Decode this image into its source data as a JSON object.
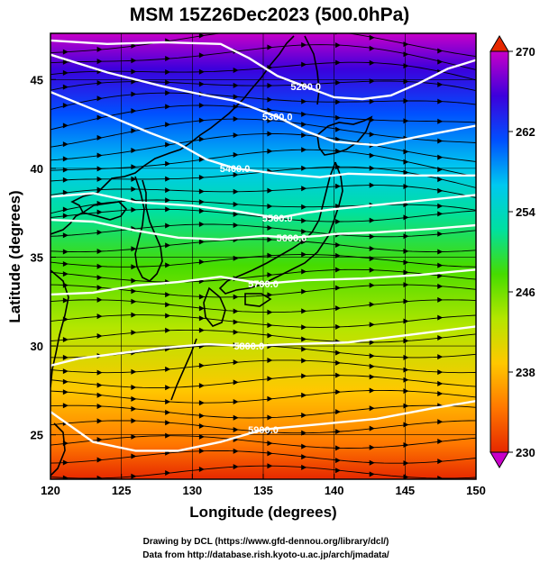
{
  "chart_data": {
    "type": "heatmap",
    "title": "MSM 15Z26Dec2023 (500.0hPa)",
    "xlabel": "Longitude (degrees)",
    "ylabel": "Latitude  (degrees)",
    "xlim": [
      120,
      150
    ],
    "ylim": [
      22.5,
      47.6
    ],
    "x_ticks": [
      120,
      125,
      130,
      135,
      140,
      145,
      150
    ],
    "y_ticks": [
      25,
      30,
      35,
      40,
      45
    ],
    "colorbar": {
      "min": 230,
      "max": 270,
      "ticks": [
        270,
        262,
        254,
        246,
        238,
        230
      ],
      "colors": [
        "#c800c8",
        "#3c00dc",
        "#0050ff",
        "#00c8f0",
        "#00e0a0",
        "#46dc00",
        "#b4e600",
        "#ffc800",
        "#ff7800",
        "#e62800"
      ]
    },
    "contours": [
      {
        "label": "5200.0",
        "points": [
          [
            120,
            47.2
          ],
          [
            124,
            47.0
          ],
          [
            128,
            47.1
          ],
          [
            132,
            47.0
          ],
          [
            134,
            46.2
          ],
          [
            136,
            45.2
          ],
          [
            138,
            44.6
          ],
          [
            140,
            44.0
          ],
          [
            142,
            43.9
          ],
          [
            144,
            44.1
          ],
          [
            146,
            44.8
          ],
          [
            148,
            45.6
          ],
          [
            150,
            46.1
          ]
        ]
      },
      {
        "label": "5300.0",
        "points": [
          [
            120,
            46.4
          ],
          [
            124,
            45.4
          ],
          [
            128,
            44.6
          ],
          [
            131,
            44.1
          ],
          [
            133,
            43.8
          ],
          [
            136,
            42.9
          ],
          [
            138,
            42.1
          ],
          [
            140,
            41.5
          ],
          [
            143,
            41.3
          ],
          [
            146,
            41.8
          ],
          [
            150,
            42.4
          ]
        ]
      },
      {
        "label": "5400.0",
        "points": [
          [
            120,
            44.3
          ],
          [
            124,
            43.0
          ],
          [
            127,
            42.0
          ],
          [
            129,
            41.4
          ],
          [
            131,
            40.5
          ],
          [
            133,
            40.0
          ],
          [
            136,
            39.7
          ],
          [
            139,
            39.5
          ],
          [
            141,
            39.7
          ],
          [
            145,
            39.6
          ],
          [
            150,
            39.6
          ]
        ]
      },
      {
        "label": "5500.0",
        "points": [
          [
            120,
            38.4
          ],
          [
            123,
            38.6
          ],
          [
            126,
            38.1
          ],
          [
            130,
            37.9
          ],
          [
            133,
            37.6
          ],
          [
            136,
            37.2
          ],
          [
            138,
            37.5
          ],
          [
            140,
            37.7
          ],
          [
            145,
            38.1
          ],
          [
            150,
            38.5
          ]
        ]
      },
      {
        "label": "5600.0",
        "points": [
          [
            120,
            37.1
          ],
          [
            123,
            37.0
          ],
          [
            126,
            36.5
          ],
          [
            129,
            36.1
          ],
          [
            132,
            36.0
          ],
          [
            135,
            36.2
          ],
          [
            137,
            36.1
          ],
          [
            139,
            36.2
          ],
          [
            140,
            36.3
          ],
          [
            143,
            36.4
          ],
          [
            147,
            36.6
          ],
          [
            150,
            36.8
          ]
        ]
      },
      {
        "label": "5700.0",
        "points": [
          [
            120,
            32.9
          ],
          [
            123,
            33.0
          ],
          [
            126,
            33.4
          ],
          [
            129,
            33.6
          ],
          [
            132,
            33.9
          ],
          [
            135,
            33.5
          ],
          [
            138,
            33.7
          ],
          [
            142,
            33.8
          ],
          [
            146,
            34.0
          ],
          [
            150,
            34.3
          ]
        ]
      },
      {
        "label": "5800.0",
        "points": [
          [
            120,
            28.9
          ],
          [
            122,
            29.3
          ],
          [
            125,
            29.6
          ],
          [
            128,
            29.9
          ],
          [
            131,
            30.1
          ],
          [
            134,
            30.0
          ],
          [
            137,
            30.1
          ],
          [
            141,
            30.2
          ],
          [
            145,
            30.6
          ],
          [
            150,
            31.1
          ]
        ]
      },
      {
        "label": "5900.0",
        "points": [
          [
            120,
            26.3
          ],
          [
            123,
            24.6
          ],
          [
            126,
            24.1
          ],
          [
            129,
            24.1
          ],
          [
            132,
            24.6
          ],
          [
            135,
            25.3
          ],
          [
            139,
            25.6
          ],
          [
            143,
            25.9
          ],
          [
            147,
            26.5
          ],
          [
            150,
            26.9
          ]
        ]
      }
    ],
    "xlabel_unit": "",
    "credits": [
      "Drawing by DCL (https://www.gfd-dennou.org/library/dcl/)",
      "Data from http://database.rish.kyoto-u.ac.jp/arch/jmadata/"
    ]
  }
}
